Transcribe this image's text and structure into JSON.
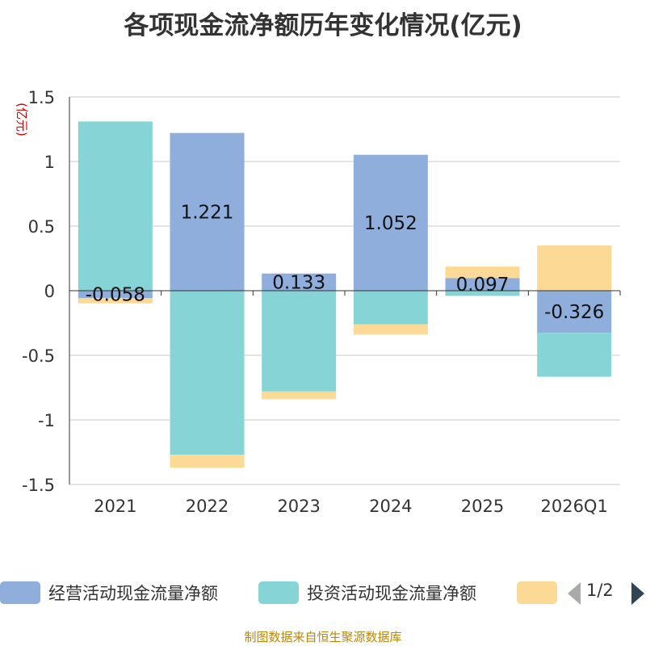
{
  "chart_data": {
    "type": "bar",
    "stacked": true,
    "title": "各项现金流净额历年变化情况(亿元)",
    "ylabel": "(亿元)",
    "ylim": [
      -1.5,
      1.5
    ],
    "yticks": [
      1.5,
      1,
      0.5,
      0,
      -0.5,
      -1,
      -1.5
    ],
    "ytick_labels": [
      "1.5",
      "1",
      "0.5",
      "0",
      "-0.5",
      "-1",
      "-1.5"
    ],
    "grid": true,
    "categories": [
      "2021",
      "2022",
      "2023",
      "2024",
      "2025",
      "2026Q1"
    ],
    "series": [
      {
        "name": "经营活动现金流量净额",
        "color": "#8faedb",
        "values": [
          -0.058,
          1.221,
          0.133,
          1.052,
          0.097,
          -0.326
        ],
        "labels": [
          "-0.058",
          "1.221",
          "0.133",
          "1.052",
          "0.097",
          "-0.326"
        ]
      },
      {
        "name": "投资活动现金流量净额",
        "color": "#86d4d6",
        "values": [
          1.31,
          -1.27,
          -0.78,
          -0.26,
          -0.04,
          -0.34
        ]
      },
      {
        "name": "",
        "color": "#fdd996",
        "values": [
          -0.04,
          -0.1,
          -0.06,
          -0.08,
          0.09,
          0.35
        ]
      }
    ],
    "legend": {
      "position": "bottom",
      "page": "1/2"
    }
  },
  "footer": {
    "source": "制图数据来自恒生聚源数据库"
  }
}
